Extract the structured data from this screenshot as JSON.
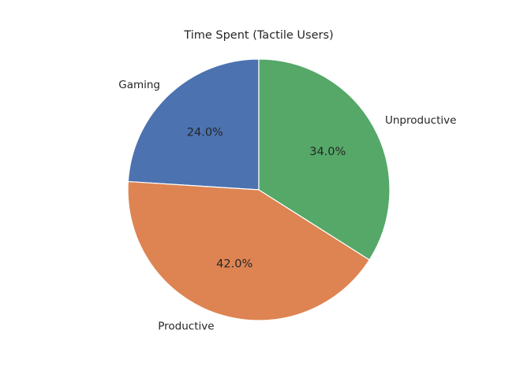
{
  "chart_data": {
    "type": "pie",
    "title": "Time Spent (Tactile Users)",
    "start_angle_deg": 90,
    "direction": "counterclockwise",
    "autopct_format": "1dp-percent",
    "slices": [
      {
        "label": "Gaming",
        "value": 24.0,
        "pct_label": "24.0%",
        "color": "#4c72b0"
      },
      {
        "label": "Productive",
        "value": 42.0,
        "pct_label": "42.0%",
        "color": "#dd8452"
      },
      {
        "label": "Unproductive",
        "value": 34.0,
        "pct_label": "34.0%",
        "color": "#55a868"
      }
    ]
  }
}
